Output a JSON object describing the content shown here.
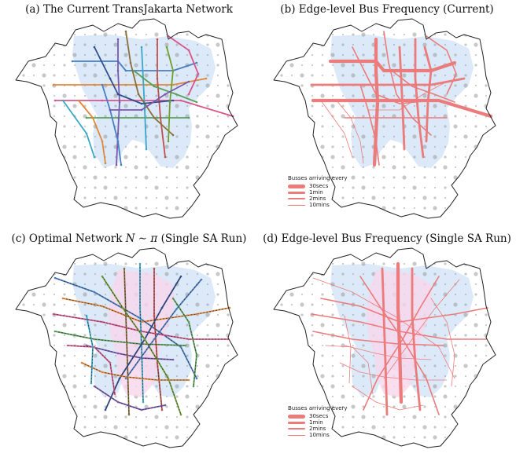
{
  "panels": [
    {
      "id": "a",
      "title_pre": "(a) The Current TransJakarta Network",
      "title_math": "",
      "title_post": "",
      "style": "multicolor-current"
    },
    {
      "id": "b",
      "title_pre": "(b) Edge-level Bus Frequency (Current)",
      "title_math": "",
      "title_post": "",
      "style": "freq-current"
    },
    {
      "id": "c",
      "title_pre": "(c) Optimal Network ",
      "title_math": "N ∼ π",
      "title_post": " (Single SA Run)",
      "style": "multicolor-optimal"
    },
    {
      "id": "d",
      "title_pre": "(d) Edge-level Bus Frequency (Single SA Run)",
      "title_math": "",
      "title_post": "",
      "style": "freq-optimal"
    }
  ],
  "legend": {
    "title": "Busses arriving every",
    "items": [
      {
        "label": "30secs",
        "weight": 4
      },
      {
        "label": "1min",
        "weight": 3
      },
      {
        "label": "2mins",
        "weight": 2
      },
      {
        "label": "10mins",
        "weight": 1
      }
    ]
  },
  "colors": {
    "boundary": "#222222",
    "demand_region": "#dbe9f8",
    "optimal_region": "#f8d6ec",
    "grid_dot": "#9a9a9a",
    "frequency_line": "#ec7b7b",
    "route_palette": [
      "#4a7fc1",
      "#e0883a",
      "#d9558a",
      "#5aa05a",
      "#7a58b0",
      "#3aa7c7",
      "#c0504d",
      "#8a6d3b",
      "#2f4f8f",
      "#6f9f2f"
    ]
  }
}
